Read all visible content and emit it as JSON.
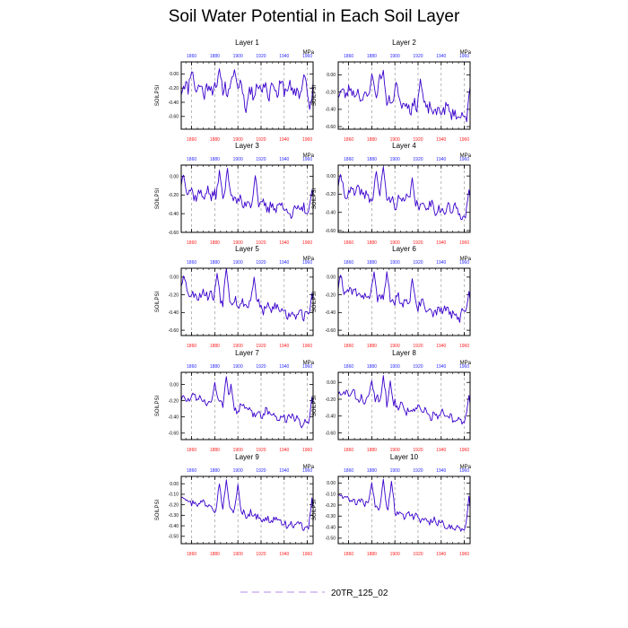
{
  "figure": {
    "title": "Soil Water Potential in Each Soil Layer",
    "legend_label": "20TR_125_02",
    "units_label": "MPa",
    "ylabel": "SOILPSI"
  },
  "colors": {
    "series": "#3a00cc",
    "top_ticks": "#2a2aff",
    "bottom_ticks": "#ff2020",
    "grid": "#9a9a9a",
    "legend_line": "#c8a0f0"
  },
  "chart_data": [
    {
      "type": "line",
      "title": "Layer 1",
      "xlim": [
        1851,
        1965
      ],
      "xticks": [
        1860,
        1880,
        1900,
        1920,
        1940,
        1960
      ],
      "ylim": [
        -0.78,
        0.17
      ],
      "yticks": [
        0.0,
        -0.2,
        -0.4,
        -0.6
      ],
      "ytick_labels": [
        "0.00",
        "-0.20",
        "-0.40",
        "-0.60"
      ],
      "trend": [
        -0.17,
        -0.24
      ],
      "noise": 0.13,
      "events": [
        [
          1860,
          0.06
        ],
        [
          1882,
          -0.32
        ],
        [
          1884,
          0.14
        ],
        [
          1897,
          0.1
        ],
        [
          1907,
          -0.58
        ],
        [
          1930,
          -0.12
        ],
        [
          1957,
          0.02
        ],
        [
          1962,
          -0.55
        ]
      ],
      "seed": 11
    },
    {
      "type": "line",
      "title": "Layer 2",
      "xlim": [
        1851,
        1965
      ],
      "xticks": [
        1860,
        1880,
        1900,
        1920,
        1940,
        1960
      ],
      "ylim": [
        -0.63,
        0.15
      ],
      "yticks": [
        0.0,
        -0.2,
        -0.4,
        -0.6
      ],
      "ytick_labels": [
        "0.00",
        "-0.20",
        "-0.40",
        "-0.60"
      ],
      "trend": [
        -0.18,
        -0.48
      ],
      "noise": 0.08,
      "events": [
        [
          1880,
          0.06
        ],
        [
          1890,
          0.1
        ],
        [
          1887,
          0.06
        ],
        [
          1901,
          -0.05
        ],
        [
          1922,
          0.0
        ],
        [
          1965,
          -0.1
        ]
      ],
      "seed": 23
    },
    {
      "type": "line",
      "title": "Layer 3",
      "xlim": [
        1851,
        1965
      ],
      "xticks": [
        1860,
        1880,
        1900,
        1920,
        1940,
        1960
      ],
      "ylim": [
        -0.6,
        0.12
      ],
      "yticks": [
        0.0,
        -0.2,
        -0.4,
        -0.6
      ],
      "ytick_labels": [
        "0.00",
        "-0.20",
        "-0.40",
        "-0.60"
      ],
      "trend": [
        -0.15,
        -0.4
      ],
      "noise": 0.07,
      "events": [
        [
          1853,
          0.04
        ],
        [
          1884,
          0.12
        ],
        [
          1891,
          0.15
        ],
        [
          1915,
          0.05
        ],
        [
          1964,
          -0.1
        ]
      ],
      "seed": 37
    },
    {
      "type": "line",
      "title": "Layer 4",
      "xlim": [
        1851,
        1965
      ],
      "xticks": [
        1860,
        1880,
        1900,
        1920,
        1940,
        1960
      ],
      "ylim": [
        -0.62,
        0.12
      ],
      "yticks": [
        0.0,
        -0.2,
        -0.4,
        -0.6
      ],
      "ytick_labels": [
        "0.00",
        "-0.20",
        "-0.40",
        "-0.60"
      ],
      "trend": [
        -0.15,
        -0.42
      ],
      "noise": 0.07,
      "events": [
        [
          1853,
          0.04
        ],
        [
          1884,
          0.1
        ],
        [
          1890,
          0.15
        ],
        [
          1915,
          0.03
        ],
        [
          1964,
          -0.1
        ]
      ],
      "seed": 41
    },
    {
      "type": "line",
      "title": "Layer 5",
      "xlim": [
        1851,
        1965
      ],
      "xticks": [
        1860,
        1880,
        1900,
        1920,
        1940,
        1960
      ],
      "ylim": [
        -0.66,
        0.1
      ],
      "yticks": [
        0.0,
        -0.2,
        -0.4,
        -0.6
      ],
      "ytick_labels": [
        "0.00",
        "-0.20",
        "-0.40",
        "-0.60"
      ],
      "trend": [
        -0.15,
        -0.45
      ],
      "noise": 0.07,
      "events": [
        [
          1853,
          0.05
        ],
        [
          1882,
          0.1
        ],
        [
          1890,
          0.16
        ],
        [
          1914,
          0.05
        ],
        [
          1964,
          -0.12
        ]
      ],
      "seed": 53
    },
    {
      "type": "line",
      "title": "Layer 6",
      "xlim": [
        1851,
        1965
      ],
      "xticks": [
        1860,
        1880,
        1900,
        1920,
        1940,
        1960
      ],
      "ylim": [
        -0.66,
        0.1
      ],
      "yticks": [
        0.0,
        -0.2,
        -0.4,
        -0.6
      ],
      "ytick_labels": [
        "0.00",
        "-0.20",
        "-0.40",
        "-0.60"
      ],
      "trend": [
        -0.14,
        -0.45
      ],
      "noise": 0.07,
      "events": [
        [
          1853,
          0.05
        ],
        [
          1882,
          0.1
        ],
        [
          1893,
          0.12
        ],
        [
          1915,
          0.04
        ],
        [
          1964,
          -0.12
        ]
      ],
      "seed": 61
    },
    {
      "type": "line",
      "title": "Layer 7",
      "xlim": [
        1851,
        1965
      ],
      "xticks": [
        1860,
        1880,
        1900,
        1920,
        1940,
        1960
      ],
      "ylim": [
        -0.68,
        0.15
      ],
      "yticks": [
        0.0,
        -0.2,
        -0.4,
        -0.6
      ],
      "ytick_labels": [
        "0.00",
        "-0.20",
        "-0.40",
        "-0.60"
      ],
      "trend": [
        -0.15,
        -0.48
      ],
      "noise": 0.06,
      "events": [
        [
          1880,
          0.08
        ],
        [
          1890,
          0.16
        ],
        [
          1894,
          0.06
        ],
        [
          1964,
          -0.1
        ]
      ],
      "seed": 73
    },
    {
      "type": "line",
      "title": "Layer 8",
      "xlim": [
        1851,
        1965
      ],
      "xticks": [
        1860,
        1880,
        1900,
        1920,
        1940,
        1960
      ],
      "ylim": [
        -0.68,
        0.12
      ],
      "yticks": [
        0.0,
        -0.2,
        -0.4,
        -0.6
      ],
      "ytick_labels": [
        "0.00",
        "-0.20",
        "-0.40",
        "-0.60"
      ],
      "trend": [
        -0.12,
        -0.48
      ],
      "noise": 0.06,
      "events": [
        [
          1880,
          0.06
        ],
        [
          1890,
          0.14
        ],
        [
          1896,
          0.08
        ],
        [
          1964,
          -0.1
        ]
      ],
      "seed": 83
    },
    {
      "type": "line",
      "title": "Layer 9",
      "xlim": [
        1851,
        1965
      ],
      "xticks": [
        1860,
        1880,
        1900,
        1920,
        1940,
        1960
      ],
      "ylim": [
        -0.57,
        0.07
      ],
      "yticks": [
        0.0,
        -0.1,
        -0.2,
        -0.3,
        -0.4,
        -0.5
      ],
      "ytick_labels": [
        "0.00",
        "-0.10",
        "-0.20",
        "-0.30",
        "-0.40",
        "-0.50"
      ],
      "trend": [
        -0.14,
        -0.44
      ],
      "noise": 0.04,
      "events": [
        [
          1852,
          -0.12
        ],
        [
          1884,
          0.04
        ],
        [
          1890,
          0.08
        ],
        [
          1900,
          0.04
        ],
        [
          1964,
          -0.08
        ]
      ],
      "seed": 97
    },
    {
      "type": "line",
      "title": "Layer 10",
      "xlim": [
        1851,
        1965
      ],
      "xticks": [
        1860,
        1880,
        1900,
        1920,
        1940,
        1960
      ],
      "ylim": [
        -0.55,
        0.06
      ],
      "yticks": [
        0.0,
        -0.1,
        -0.2,
        -0.3,
        -0.4,
        -0.5
      ],
      "ytick_labels": [
        "0.00",
        "-0.10",
        "-0.20",
        "-0.30",
        "-0.40",
        "-0.50"
      ],
      "trend": [
        -0.12,
        -0.44
      ],
      "noise": 0.035,
      "events": [
        [
          1852,
          -0.1
        ],
        [
          1880,
          0.04
        ],
        [
          1890,
          0.08
        ],
        [
          1897,
          0.06
        ],
        [
          1964,
          -0.06
        ]
      ],
      "seed": 109
    }
  ]
}
